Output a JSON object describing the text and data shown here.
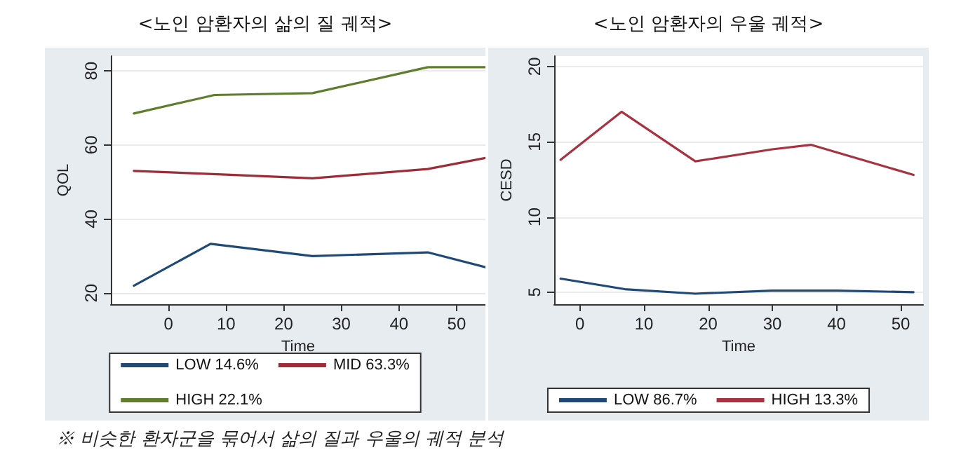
{
  "chart_data": [
    {
      "type": "line",
      "title": "<노인 암환자의 삶의 질 궤적>",
      "xlabel": "Time",
      "ylabel": "QOL",
      "xlim": [
        -10,
        55
      ],
      "xticks": [
        0,
        10,
        20,
        30,
        40,
        50
      ],
      "ylim": [
        17,
        84
      ],
      "yticks": [
        20,
        40,
        60,
        80
      ],
      "grid": "y",
      "legend": "bottom",
      "marker": "none",
      "line_style": "solid",
      "annotations": [
        "※ 비슷한 환자군을 묶어서 삶의 질과 우울의 궤적 분석"
      ],
      "series": [
        {
          "name": "LOW 14.6%",
          "color": "#1f4a78",
          "x": [
            -6,
            7.3,
            25,
            45,
            55
          ],
          "values": [
            22,
            33.3,
            30,
            31,
            27
          ]
        },
        {
          "name": "MID 63.3%",
          "color": "#9e2b38",
          "x": [
            -6,
            10,
            25,
            45,
            55
          ],
          "values": [
            53,
            52,
            51,
            53.5,
            56.5
          ]
        },
        {
          "name": "HIGH 22.1%",
          "color": "#5f7d2c",
          "x": [
            -6,
            8,
            25,
            45,
            55
          ],
          "values": [
            68.5,
            73.5,
            74,
            81,
            81
          ]
        }
      ]
    },
    {
      "type": "line",
      "title": "<노인 암환자의 우울 궤적>",
      "xlabel": "Time",
      "ylabel": "CESD",
      "xlim": [
        -4,
        53.5
      ],
      "xticks": [
        0,
        10,
        20,
        30,
        40,
        50
      ],
      "ylim": [
        4.2,
        20.7
      ],
      "yticks": [
        5,
        10,
        15,
        20
      ],
      "grid": "y",
      "legend": "bottom",
      "marker": "none",
      "line_style": "solid",
      "series": [
        {
          "name": "LOW 86.7%",
          "color": "#1f4a78",
          "x": [
            -3,
            7,
            18,
            30,
            40,
            52
          ],
          "values": [
            5.9,
            5.2,
            4.9,
            5.1,
            5.1,
            5.0
          ]
        },
        {
          "name": "HIGH 13.3%",
          "color": "#a83240",
          "x": [
            -3,
            6.5,
            18,
            30,
            36,
            52
          ],
          "values": [
            13.8,
            17,
            13.7,
            14.5,
            14.8,
            12.8
          ]
        }
      ]
    }
  ]
}
